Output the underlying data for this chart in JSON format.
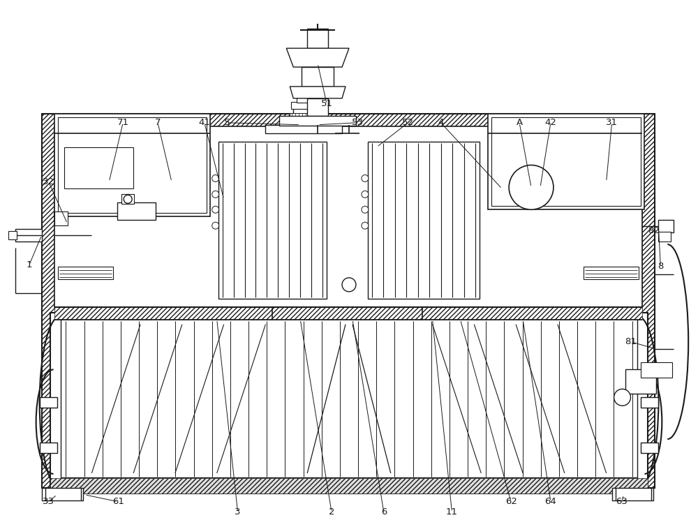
{
  "bg_color": "#ffffff",
  "line_color": "#1a1a1a",
  "figsize": [
    10.0,
    7.55
  ],
  "dpi": 100,
  "lw": 1.0,
  "label_fs": 9.5
}
